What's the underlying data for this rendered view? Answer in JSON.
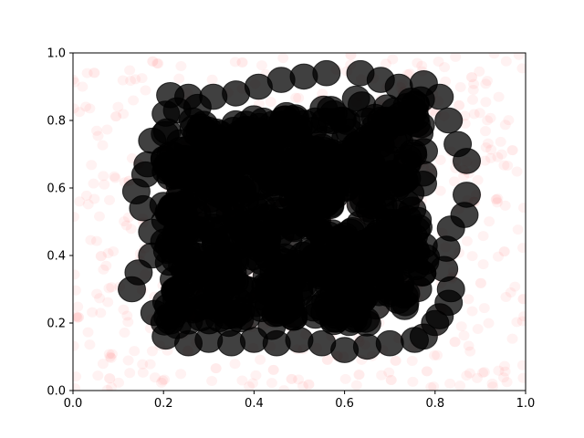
{
  "chart_data": {
    "type": "scatter",
    "title": "",
    "xlabel": "",
    "ylabel": "",
    "xlim": [
      0.0,
      1.0
    ],
    "ylim": [
      0.0,
      1.0
    ],
    "x_ticks": [
      "0.0",
      "0.2",
      "0.4",
      "0.6",
      "0.8",
      "1.0"
    ],
    "y_ticks": [
      "0.0",
      "0.2",
      "0.4",
      "0.6",
      "0.8",
      "1.0"
    ],
    "grid": false,
    "legend": "none",
    "series": [
      {
        "role": "background",
        "color": "#ff0000",
        "alpha": 0.05,
        "marker": "circle",
        "size": "small",
        "count_estimate": 500,
        "distribution": "uniform",
        "x_range": [
          0.0,
          1.0
        ],
        "y_range": [
          0.0,
          1.0
        ],
        "x": [
          0.047,
          0.095,
          0.176,
          0.213,
          0.316,
          0.483,
          0.521,
          0.584,
          0.632,
          0.713,
          0.844,
          0.901,
          0.935,
          0.971,
          0.012,
          0.062,
          0.145,
          0.254,
          0.443,
          0.562,
          0.703,
          0.782,
          0.853,
          0.953,
          0.081,
          0.124,
          0.374,
          0.614,
          0.881,
          0.995
        ],
        "y": [
          0.941,
          0.812,
          0.975,
          0.542,
          0.066,
          0.034,
          0.018,
          0.102,
          0.047,
          0.088,
          0.144,
          0.318,
          0.566,
          0.712,
          0.217,
          0.398,
          0.672,
          0.118,
          0.061,
          0.091,
          0.031,
          0.057,
          0.845,
          0.412,
          0.036,
          0.621,
          0.972,
          0.994,
          0.928,
          0.271
        ]
      },
      {
        "role": "foreground",
        "color": "#000000",
        "alpha": 0.75,
        "marker": "circle",
        "size": "large",
        "edge_color": "#000000",
        "x": [
          0.13,
          0.145,
          0.175,
          0.155,
          0.14,
          0.16,
          0.175,
          0.205,
          0.215,
          0.23,
          0.255,
          0.265,
          0.275,
          0.31,
          0.36,
          0.41,
          0.46,
          0.51,
          0.56,
          0.635,
          0.68,
          0.72,
          0.775,
          0.81,
          0.83,
          0.85,
          0.87,
          0.87,
          0.865,
          0.835,
          0.825,
          0.82,
          0.835,
          0.83,
          0.81,
          0.8,
          0.775,
          0.755,
          0.7,
          0.65,
          0.6,
          0.55,
          0.5,
          0.45,
          0.4,
          0.35,
          0.3,
          0.255,
          0.205,
          0.18,
          0.175,
          0.165,
          0.2,
          0.3,
          0.4,
          0.5,
          0.6,
          0.7
        ],
        "y": [
          0.3,
          0.35,
          0.47,
          0.54,
          0.59,
          0.64,
          0.74,
          0.82,
          0.875,
          0.83,
          0.87,
          0.8,
          0.84,
          0.87,
          0.88,
          0.9,
          0.92,
          0.93,
          0.94,
          0.94,
          0.92,
          0.9,
          0.91,
          0.87,
          0.8,
          0.73,
          0.68,
          0.58,
          0.52,
          0.48,
          0.42,
          0.36,
          0.3,
          0.26,
          0.22,
          0.2,
          0.16,
          0.15,
          0.14,
          0.13,
          0.12,
          0.14,
          0.15,
          0.14,
          0.15,
          0.14,
          0.15,
          0.14,
          0.16,
          0.23,
          0.4,
          0.67,
          0.55,
          0.6,
          0.55,
          0.5,
          0.45,
          0.5
        ]
      }
    ]
  }
}
